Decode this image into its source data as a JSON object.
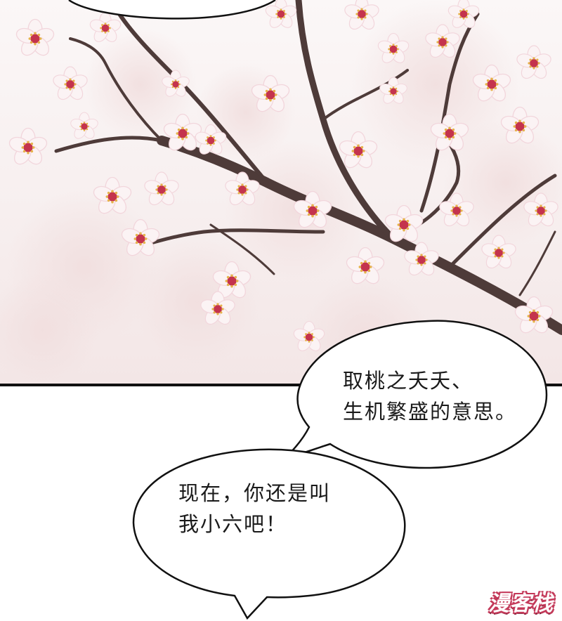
{
  "panel_top": {
    "subject": "blossom-branch-illustration"
  },
  "bubbles": [
    {
      "lines": [
        "取桃之夭夭、",
        "生机繁盛的意思。"
      ]
    },
    {
      "lines": [
        "现在，你还是叫",
        "我小六吧！"
      ]
    }
  ],
  "watermark": {
    "text": "漫客栈"
  },
  "colors": {
    "petal": "#fbf3f4",
    "petal_shade": "#f2d6dc",
    "blossom_center": "#c4334d",
    "stamen": "#e6b24a",
    "branch": "#4e3b39",
    "outline": "#111111"
  }
}
